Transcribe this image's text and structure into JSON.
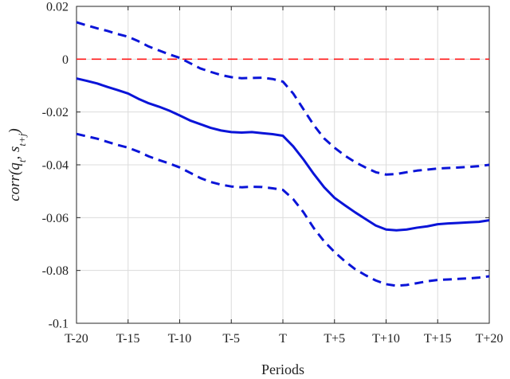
{
  "chart_data": {
    "type": "line",
    "xlabel": "Periods",
    "ylabel": "corr(q_t, s_{t+j})",
    "ylabel_display": {
      "base": "corr(q",
      "sub1": "t",
      "mid": ", s",
      "sub2": "t+j",
      "end": ")"
    },
    "x_tick_labels": [
      "T-20",
      "T-15",
      "T-10",
      "T-5",
      "T",
      "T+5",
      "T+10",
      "T+15",
      "T+20"
    ],
    "y_tick_labels": [
      "0.02",
      "0",
      "-0.02",
      "-0.04",
      "-0.06",
      "-0.08",
      "-0.1"
    ],
    "x_range": [
      -20,
      20
    ],
    "ylim": [
      -0.1,
      0.02
    ],
    "y_ticks": [
      0.02,
      0,
      -0.02,
      -0.04,
      -0.06,
      -0.08,
      -0.1
    ],
    "x_ticks": [
      -20,
      -15,
      -10,
      -5,
      0,
      5,
      10,
      15,
      20
    ],
    "grid": true,
    "x": [
      -20,
      -19,
      -18,
      -17,
      -16,
      -15,
      -14,
      -13,
      -12,
      -11,
      -10,
      -9,
      -8,
      -7,
      -6,
      -5,
      -4,
      -3,
      -2,
      -1,
      0,
      1,
      2,
      3,
      4,
      5,
      6,
      7,
      8,
      9,
      10,
      11,
      12,
      13,
      14,
      15,
      16,
      17,
      18,
      19,
      20
    ],
    "series": [
      {
        "style": "solid",
        "color": "#0a14d8",
        "values": [
          -0.0073,
          -0.0082,
          -0.0092,
          -0.0105,
          -0.0117,
          -0.013,
          -0.015,
          -0.0167,
          -0.018,
          -0.0195,
          -0.0213,
          -0.0232,
          -0.0246,
          -0.026,
          -0.027,
          -0.0276,
          -0.0278,
          -0.0276,
          -0.028,
          -0.0284,
          -0.029,
          -0.033,
          -0.038,
          -0.0435,
          -0.0485,
          -0.0525,
          -0.0553,
          -0.058,
          -0.0605,
          -0.063,
          -0.0645,
          -0.0648,
          -0.0645,
          -0.0638,
          -0.0633,
          -0.0625,
          -0.0622,
          -0.062,
          -0.0618,
          -0.0616,
          -0.061
        ]
      },
      {
        "style": "dashed",
        "color": "#0a14d8",
        "values": [
          0.014,
          0.0128,
          0.0117,
          0.0107,
          0.0095,
          0.0085,
          0.0068,
          0.0048,
          0.0033,
          0.0018,
          0.0005,
          -0.0015,
          -0.0035,
          -0.0048,
          -0.006,
          -0.0068,
          -0.0072,
          -0.0071,
          -0.007,
          -0.0075,
          -0.0085,
          -0.013,
          -0.019,
          -0.025,
          -0.03,
          -0.0335,
          -0.0365,
          -0.039,
          -0.041,
          -0.0428,
          -0.0437,
          -0.0435,
          -0.0428,
          -0.0422,
          -0.0418,
          -0.0414,
          -0.0412,
          -0.041,
          -0.0408,
          -0.0405,
          -0.04
        ]
      },
      {
        "style": "dashed",
        "color": "#0a14d8",
        "values": [
          -0.0283,
          -0.0292,
          -0.0301,
          -0.0313,
          -0.0325,
          -0.0335,
          -0.035,
          -0.0368,
          -0.0382,
          -0.0395,
          -0.041,
          -0.043,
          -0.045,
          -0.0465,
          -0.0475,
          -0.0482,
          -0.0485,
          -0.0483,
          -0.0484,
          -0.0489,
          -0.0495,
          -0.053,
          -0.058,
          -0.064,
          -0.069,
          -0.073,
          -0.0765,
          -0.0795,
          -0.0818,
          -0.0838,
          -0.0852,
          -0.0858,
          -0.0855,
          -0.0848,
          -0.0841,
          -0.0836,
          -0.0834,
          -0.0832,
          -0.083,
          -0.0827,
          -0.0822
        ]
      },
      {
        "style": "dashed",
        "color": "#ff1a1a",
        "values": [
          0,
          0,
          0,
          0,
          0,
          0,
          0,
          0,
          0,
          0,
          0,
          0,
          0,
          0,
          0,
          0,
          0,
          0,
          0,
          0,
          0,
          0,
          0,
          0,
          0,
          0,
          0,
          0,
          0,
          0,
          0,
          0,
          0,
          0,
          0,
          0,
          0,
          0,
          0,
          0,
          0
        ]
      }
    ]
  }
}
